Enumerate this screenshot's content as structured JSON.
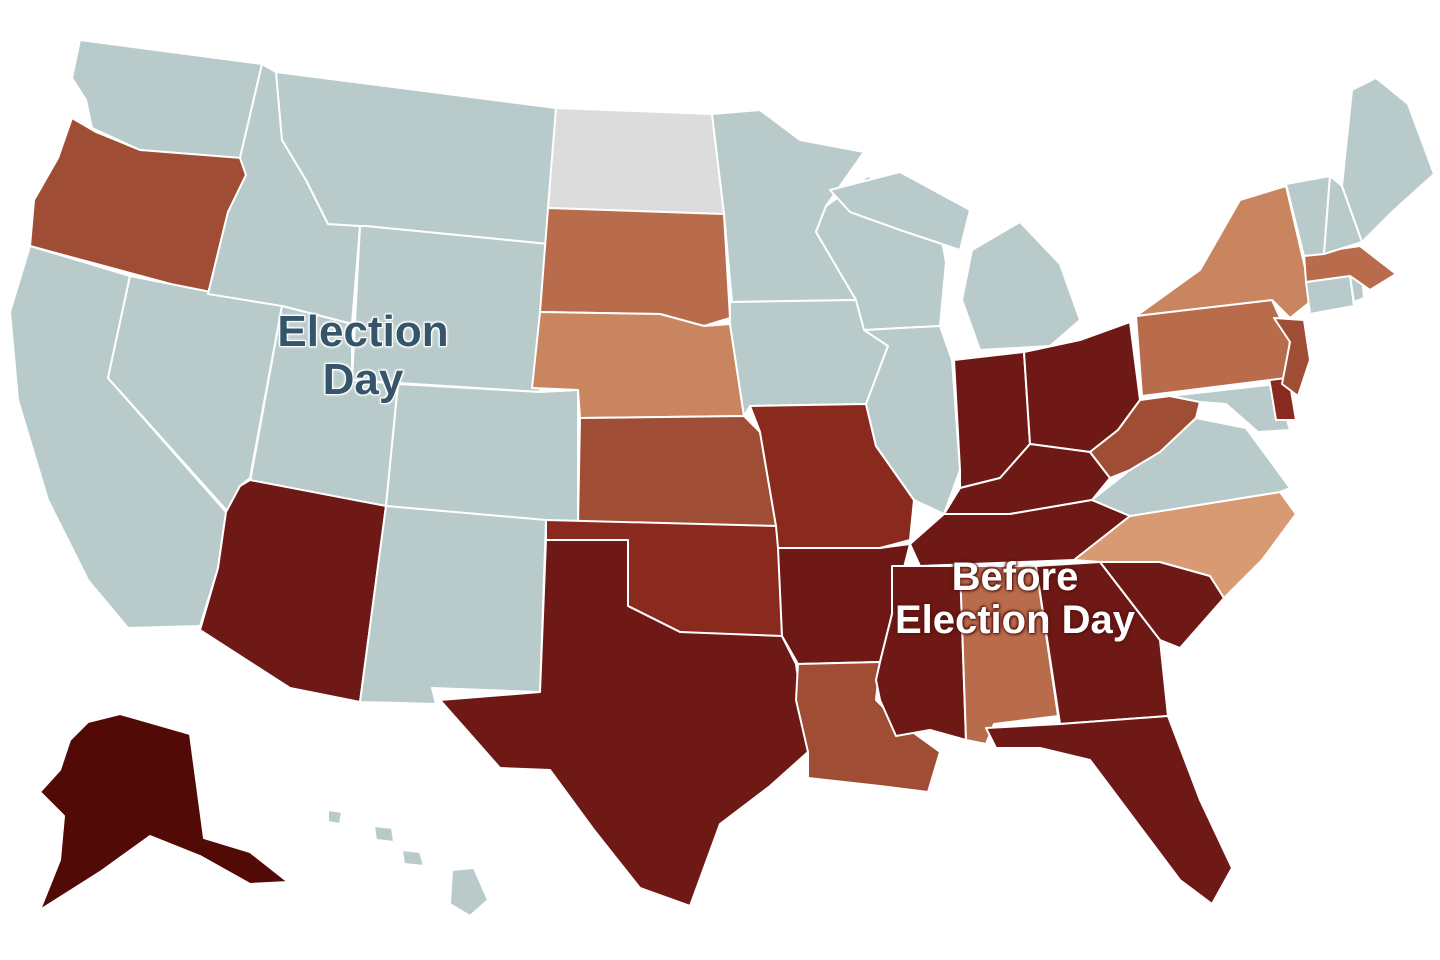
{
  "map": {
    "labels": {
      "election_day": "Election\nDay",
      "before_election_day": "Before\nElection Day"
    },
    "colors": {
      "election_day": "#b8caca",
      "no_data": "#dcdcdc",
      "before_darkest": "#520a06",
      "before_dark": "#6e1915",
      "before_mid_dark": "#8a2a1e",
      "before_mid": "#a04d35",
      "before_mid_light": "#b96c4c",
      "before_light": "#c98560",
      "before_lightest": "#d89a72",
      "border": "#ffffff"
    },
    "states": [
      {
        "id": "WA",
        "category": "election_day"
      },
      {
        "id": "OR",
        "category": "before_mid"
      },
      {
        "id": "CA",
        "category": "election_day"
      },
      {
        "id": "NV",
        "category": "election_day"
      },
      {
        "id": "ID",
        "category": "election_day"
      },
      {
        "id": "MT",
        "category": "election_day"
      },
      {
        "id": "WY",
        "category": "election_day"
      },
      {
        "id": "UT",
        "category": "election_day"
      },
      {
        "id": "CO",
        "category": "election_day"
      },
      {
        "id": "AZ",
        "category": "before_dark"
      },
      {
        "id": "NM",
        "category": "election_day"
      },
      {
        "id": "ND",
        "category": "no_data"
      },
      {
        "id": "SD",
        "category": "before_mid_light"
      },
      {
        "id": "NE",
        "category": "before_light"
      },
      {
        "id": "KS",
        "category": "before_mid"
      },
      {
        "id": "OK",
        "category": "before_mid_dark"
      },
      {
        "id": "TX",
        "category": "before_dark"
      },
      {
        "id": "MN",
        "category": "election_day"
      },
      {
        "id": "IA",
        "category": "election_day"
      },
      {
        "id": "MO",
        "category": "before_mid_dark"
      },
      {
        "id": "AR",
        "category": "before_dark"
      },
      {
        "id": "LA",
        "category": "before_mid"
      },
      {
        "id": "WI",
        "category": "election_day"
      },
      {
        "id": "IL",
        "category": "election_day"
      },
      {
        "id": "MI",
        "category": "election_day"
      },
      {
        "id": "IN",
        "category": "before_dark"
      },
      {
        "id": "OH",
        "category": "before_dark"
      },
      {
        "id": "KY",
        "category": "before_dark"
      },
      {
        "id": "TN",
        "category": "before_dark"
      },
      {
        "id": "MS",
        "category": "before_dark"
      },
      {
        "id": "AL",
        "category": "before_mid_light"
      },
      {
        "id": "GA",
        "category": "before_dark"
      },
      {
        "id": "FL",
        "category": "before_dark"
      },
      {
        "id": "SC",
        "category": "before_dark"
      },
      {
        "id": "NC",
        "category": "before_lightest"
      },
      {
        "id": "VA",
        "category": "election_day"
      },
      {
        "id": "WV",
        "category": "before_mid"
      },
      {
        "id": "MD",
        "category": "election_day"
      },
      {
        "id": "DE",
        "category": "before_mid_dark"
      },
      {
        "id": "PA",
        "category": "before_mid_light"
      },
      {
        "id": "NJ",
        "category": "before_mid"
      },
      {
        "id": "NY",
        "category": "before_light"
      },
      {
        "id": "CT",
        "category": "election_day"
      },
      {
        "id": "RI",
        "category": "election_day"
      },
      {
        "id": "MA",
        "category": "before_mid_light"
      },
      {
        "id": "VT",
        "category": "election_day"
      },
      {
        "id": "NH",
        "category": "election_day"
      },
      {
        "id": "ME",
        "category": "election_day"
      },
      {
        "id": "AK",
        "category": "before_darkest"
      },
      {
        "id": "HI",
        "category": "election_day"
      }
    ]
  }
}
